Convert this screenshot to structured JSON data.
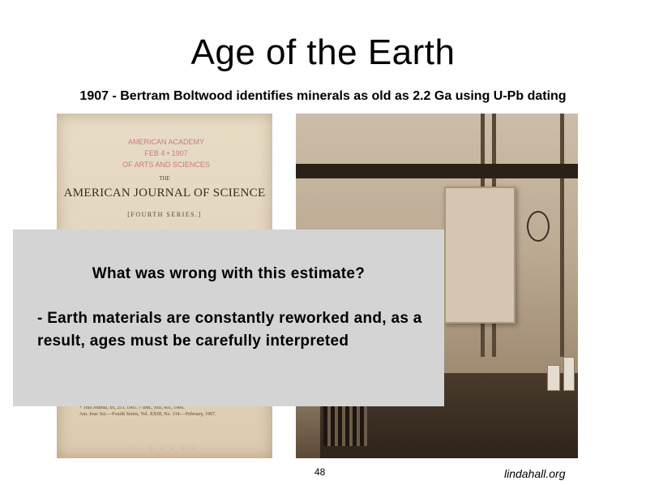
{
  "slide": {
    "title": "Age of the Earth",
    "subtitle": "1907 - Bertram Boltwood identifies minerals as old as 2.2 Ga using U-Pb dating",
    "page_number": "48",
    "credit": "lindahall.org"
  },
  "journal_image": {
    "stamp_line1": "AMERICAN ACADEMY",
    "stamp_line2": "FEB 4 • 1907",
    "stamp_line3": "OF ARTS AND SCIENCES",
    "the": "THE",
    "journal_name": "AMERICAN JOURNAL OF SCIENCE",
    "series": "[FOURTH SERIES.]",
    "footnote1": "* This Journal, xx, 253, 1905.          † Ibid., xxii, 601, 1906.",
    "footnote2": "Am. Jour. Sci.—Fourth Series, Vol. XXIII, No. 134.—February, 1907."
  },
  "overlay": {
    "question": "What was wrong with this estimate?",
    "answer": "- Earth materials are constantly reworked and, as a result, ages must be carefully interpreted"
  }
}
